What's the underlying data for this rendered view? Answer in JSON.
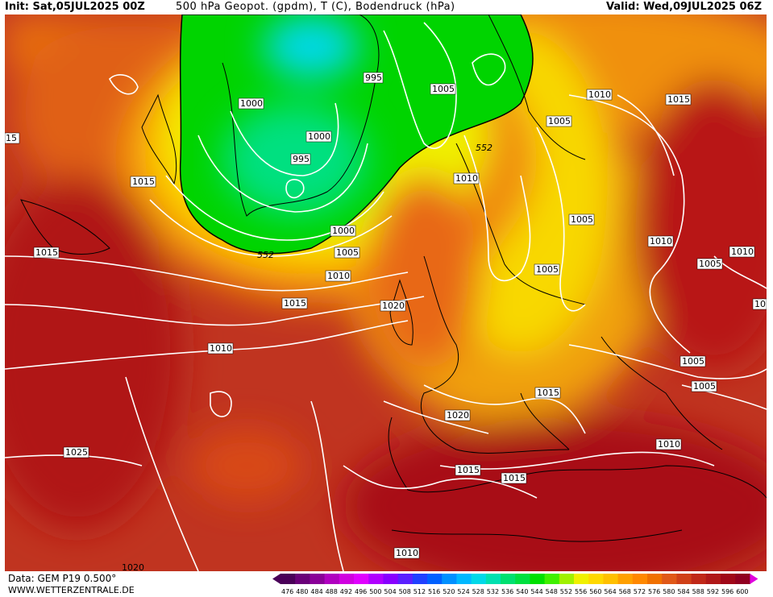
{
  "header": {
    "init": "Init: Sat,05JUL2025 00Z",
    "title": "500 hPa Geopot. (gpdm), T (C), Bodendruck (hPa)",
    "valid": "Valid: Wed,09JUL2025 06Z"
  },
  "footer": {
    "data_source": "Data: GEM P19 0.500°",
    "website": "WWW.WETTERZENTRALE.DE"
  },
  "colors": {
    "map_base": "#c03420",
    "low_green": "#00dd00",
    "isobar": "#ffffff",
    "coastline": "#000000"
  },
  "legend": {
    "values": [
      "476",
      "480",
      "484",
      "488",
      "492",
      "496",
      "500",
      "504",
      "508",
      "512",
      "516",
      "520",
      "524",
      "528",
      "532",
      "536",
      "540",
      "544",
      "548",
      "552",
      "556",
      "560",
      "564",
      "568",
      "572",
      "576",
      "580",
      "584",
      "588",
      "592",
      "596",
      "600"
    ],
    "colors": [
      "#4a0058",
      "#6a0078",
      "#8a0098",
      "#b000c0",
      "#d000e0",
      "#e000ff",
      "#b000ff",
      "#8800ff",
      "#5a20ff",
      "#2040ff",
      "#0060ff",
      "#0090ff",
      "#00b8ff",
      "#00d8e8",
      "#00e0b0",
      "#00e070",
      "#00e040",
      "#00e000",
      "#40f000",
      "#a0f000",
      "#f0f000",
      "#ffd800",
      "#ffc000",
      "#ffa000",
      "#ff8800",
      "#f07000",
      "#e05818",
      "#d04018",
      "#c02818",
      "#b01818",
      "#a00818",
      "#900020"
    ]
  },
  "isobar_labels": {
    "l1": "1000",
    "l2": "995",
    "l3": "1005",
    "l4": "1010",
    "l5": "1015",
    "l6": "1000",
    "l7": "995",
    "l8": "552",
    "l9": "1010",
    "l10": "1005",
    "l11": "1015",
    "l12": "1015",
    "l13": "1000",
    "l14": "552",
    "l15": "1005",
    "l16": "1010",
    "l17": "1005",
    "l18": "1015",
    "l19": "1010",
    "l20": "1005",
    "l21": "1010",
    "l22": "1010",
    "l23": "1020",
    "l24": "1020",
    "l25": "1015",
    "l26": "1020",
    "l27": "1005",
    "l28": "1005",
    "l29": "1015",
    "l30": "1010",
    "l31": "1025",
    "l32": "1015",
    "l33": "1015",
    "l34": "1010",
    "l35": "10",
    "l36": "15",
    "l37": "1020"
  }
}
